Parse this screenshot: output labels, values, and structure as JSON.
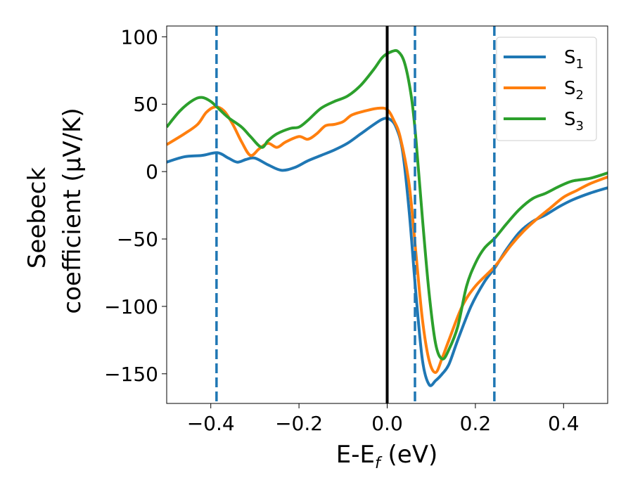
{
  "chart_data": {
    "type": "line",
    "title": "",
    "xlabel": {
      "main": "E-E",
      "sub": "f",
      "tail": " (eV)"
    },
    "ylabel": {
      "line1": "Seebeck",
      "line2": "coefficient  (μV/K)"
    },
    "xlim": [
      -0.5,
      0.5
    ],
    "ylim": [
      -172,
      108
    ],
    "xticks": [
      {
        "value": -0.4,
        "label": "−0.4"
      },
      {
        "value": -0.2,
        "label": "−0.2"
      },
      {
        "value": 0.0,
        "label": "0.0"
      },
      {
        "value": 0.2,
        "label": "0.2"
      },
      {
        "value": 0.4,
        "label": "0.4"
      }
    ],
    "yticks": [
      {
        "value": 100,
        "label": "100"
      },
      {
        "value": 50,
        "label": "50"
      },
      {
        "value": 0,
        "label": "0"
      },
      {
        "value": -50,
        "label": "−50"
      },
      {
        "value": -100,
        "label": "−100"
      },
      {
        "value": -150,
        "label": "−150"
      }
    ],
    "grid": false,
    "legend_position": "top-right",
    "series": [
      {
        "name": "S",
        "sub": "1",
        "color": "#1f77b4",
        "points": [
          [
            -0.5,
            7
          ],
          [
            -0.46,
            11
          ],
          [
            -0.42,
            12
          ],
          [
            -0.385,
            14
          ],
          [
            -0.36,
            10
          ],
          [
            -0.34,
            7
          ],
          [
            -0.32,
            9
          ],
          [
            -0.3,
            10
          ],
          [
            -0.27,
            5
          ],
          [
            -0.24,
            1
          ],
          [
            -0.21,
            3
          ],
          [
            -0.18,
            8
          ],
          [
            -0.15,
            12
          ],
          [
            -0.12,
            16
          ],
          [
            -0.09,
            21
          ],
          [
            -0.06,
            28
          ],
          [
            -0.03,
            35
          ],
          [
            -0.01,
            39
          ],
          [
            0.005,
            39
          ],
          [
            0.02,
            33
          ],
          [
            0.035,
            15
          ],
          [
            0.05,
            -30
          ],
          [
            0.065,
            -90
          ],
          [
            0.08,
            -140
          ],
          [
            0.095,
            -158
          ],
          [
            0.11,
            -155
          ],
          [
            0.125,
            -150
          ],
          [
            0.14,
            -143
          ],
          [
            0.16,
            -125
          ],
          [
            0.19,
            -100
          ],
          [
            0.22,
            -82
          ],
          [
            0.245,
            -71
          ],
          [
            0.27,
            -58
          ],
          [
            0.3,
            -45
          ],
          [
            0.33,
            -37
          ],
          [
            0.36,
            -32
          ],
          [
            0.39,
            -26
          ],
          [
            0.42,
            -21
          ],
          [
            0.46,
            -16
          ],
          [
            0.5,
            -12
          ]
        ]
      },
      {
        "name": "S",
        "sub": "2",
        "color": "#ff7f0e",
        "points": [
          [
            -0.5,
            20
          ],
          [
            -0.46,
            28
          ],
          [
            -0.43,
            35
          ],
          [
            -0.41,
            44
          ],
          [
            -0.39,
            48
          ],
          [
            -0.37,
            45
          ],
          [
            -0.35,
            35
          ],
          [
            -0.33,
            22
          ],
          [
            -0.31,
            12
          ],
          [
            -0.29,
            17
          ],
          [
            -0.27,
            21
          ],
          [
            -0.25,
            18
          ],
          [
            -0.23,
            22
          ],
          [
            -0.2,
            26
          ],
          [
            -0.18,
            24
          ],
          [
            -0.16,
            28
          ],
          [
            -0.14,
            34
          ],
          [
            -0.12,
            35
          ],
          [
            -0.1,
            37
          ],
          [
            -0.08,
            42
          ],
          [
            -0.05,
            45
          ],
          [
            -0.02,
            47
          ],
          [
            0.0,
            46
          ],
          [
            0.015,
            38
          ],
          [
            0.03,
            25
          ],
          [
            0.05,
            -10
          ],
          [
            0.065,
            -60
          ],
          [
            0.08,
            -110
          ],
          [
            0.095,
            -140
          ],
          [
            0.11,
            -149
          ],
          [
            0.125,
            -138
          ],
          [
            0.14,
            -125
          ],
          [
            0.17,
            -100
          ],
          [
            0.2,
            -85
          ],
          [
            0.245,
            -70
          ],
          [
            0.28,
            -55
          ],
          [
            0.31,
            -44
          ],
          [
            0.34,
            -35
          ],
          [
            0.37,
            -27
          ],
          [
            0.4,
            -19
          ],
          [
            0.43,
            -14
          ],
          [
            0.46,
            -9
          ],
          [
            0.5,
            -4
          ]
        ]
      },
      {
        "name": "S",
        "sub": "3",
        "color": "#2ca02c",
        "points": [
          [
            -0.5,
            33
          ],
          [
            -0.47,
            45
          ],
          [
            -0.44,
            53
          ],
          [
            -0.42,
            55
          ],
          [
            -0.4,
            52
          ],
          [
            -0.38,
            46
          ],
          [
            -0.36,
            40
          ],
          [
            -0.33,
            33
          ],
          [
            -0.31,
            26
          ],
          [
            -0.285,
            18
          ],
          [
            -0.27,
            23
          ],
          [
            -0.25,
            28
          ],
          [
            -0.22,
            32
          ],
          [
            -0.2,
            33
          ],
          [
            -0.18,
            38
          ],
          [
            -0.15,
            47
          ],
          [
            -0.12,
            52
          ],
          [
            -0.09,
            56
          ],
          [
            -0.06,
            64
          ],
          [
            -0.03,
            76
          ],
          [
            -0.01,
            85
          ],
          [
            0.01,
            89
          ],
          [
            0.025,
            89
          ],
          [
            0.04,
            80
          ],
          [
            0.055,
            55
          ],
          [
            0.065,
            25
          ],
          [
            0.08,
            -35
          ],
          [
            0.095,
            -90
          ],
          [
            0.11,
            -128
          ],
          [
            0.125,
            -139
          ],
          [
            0.14,
            -132
          ],
          [
            0.16,
            -115
          ],
          [
            0.18,
            -85
          ],
          [
            0.2,
            -68
          ],
          [
            0.22,
            -57
          ],
          [
            0.245,
            -49
          ],
          [
            0.27,
            -39
          ],
          [
            0.3,
            -28
          ],
          [
            0.33,
            -20
          ],
          [
            0.36,
            -16
          ],
          [
            0.39,
            -11
          ],
          [
            0.42,
            -7
          ],
          [
            0.46,
            -5
          ],
          [
            0.5,
            -1
          ]
        ]
      }
    ],
    "reference_lines": [
      {
        "x": 0.0,
        "style": "solid",
        "color": "#000000"
      },
      {
        "x": -0.387,
        "style": "dashed",
        "color": "#1f77b4"
      },
      {
        "x": 0.063,
        "style": "dashed",
        "color": "#1f77b4"
      },
      {
        "x": 0.243,
        "style": "dashed",
        "color": "#1f77b4"
      }
    ]
  }
}
